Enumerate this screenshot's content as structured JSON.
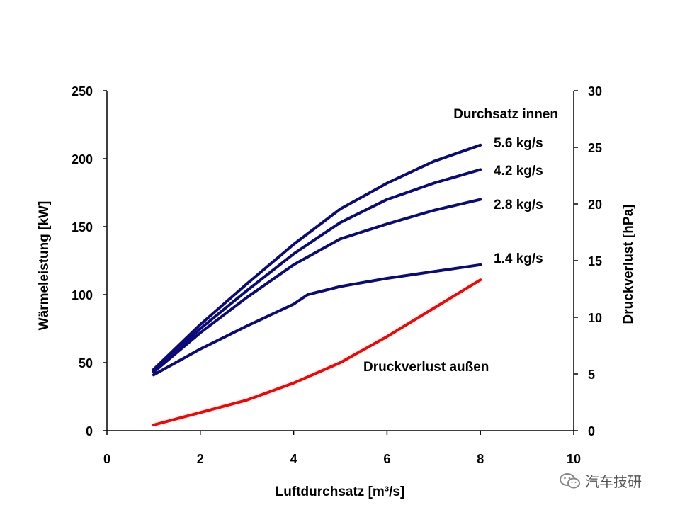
{
  "chart_data": {
    "type": "line",
    "title": "",
    "xlabel": "Luftdurchsatz [m³/s]",
    "ylabel_left": "Wärmeleistung  [kW]",
    "ylabel_right": "Druckverlust [hPa]",
    "xlim": [
      0,
      10
    ],
    "ylim_left": [
      0,
      250
    ],
    "ylim_right": [
      0,
      30
    ],
    "x_ticks": [
      "0",
      "2",
      "4",
      "6",
      "8",
      "10"
    ],
    "y_left_ticks": [
      "0",
      "50",
      "100",
      "150",
      "200",
      "250"
    ],
    "y_right_ticks": [
      "0",
      "5",
      "10",
      "15",
      "20",
      "25",
      "30"
    ],
    "grid": false,
    "legend_title": "Durchsatz innen",
    "series": [
      {
        "name": "5.6 kg/s",
        "axis": "left",
        "color": "#0a0a78",
        "x": [
          1,
          2,
          3,
          4,
          5,
          6,
          7,
          8
        ],
        "y": [
          45,
          78,
          108,
          137,
          163,
          182,
          198,
          210
        ]
      },
      {
        "name": "4.2 kg/s",
        "axis": "left",
        "color": "#0a0a78",
        "x": [
          1,
          2,
          3,
          4,
          5,
          6,
          7,
          8
        ],
        "y": [
          44,
          75,
          103,
          130,
          153,
          170,
          182,
          192
        ]
      },
      {
        "name": "2.8 kg/s",
        "axis": "left",
        "color": "#0a0a78",
        "x": [
          1,
          2,
          3,
          4,
          5,
          6,
          7,
          8
        ],
        "y": [
          43,
          72,
          98,
          122,
          141,
          152,
          162,
          170
        ]
      },
      {
        "name": "1.4 kg/s",
        "axis": "left",
        "color": "#0a0a78",
        "x": [
          1,
          2,
          3,
          4,
          4.3,
          5,
          6,
          7,
          8
        ],
        "y": [
          41,
          60,
          77,
          93,
          100,
          106,
          112,
          117,
          122
        ]
      },
      {
        "name": "Druckverlust außen",
        "axis": "right",
        "color": "#ff0000",
        "x": [
          1,
          2,
          3,
          4,
          5,
          6,
          7,
          8
        ],
        "y": [
          0.5,
          1.6,
          2.7,
          4.2,
          6.0,
          8.3,
          10.8,
          13.3
        ]
      }
    ]
  },
  "watermark": {
    "text": "汽车技研",
    "icon": "wechat-icon"
  }
}
